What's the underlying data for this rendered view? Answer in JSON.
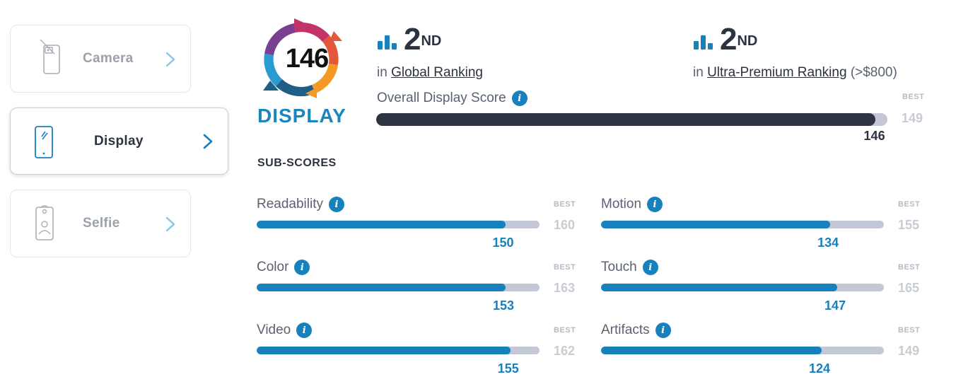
{
  "sidebar": {
    "items": [
      {
        "label": "Camera",
        "active": false
      },
      {
        "label": "Display",
        "active": true
      },
      {
        "label": "Selfie",
        "active": false
      }
    ]
  },
  "badge": {
    "score": "146",
    "label": "DISPLAY"
  },
  "rankings": [
    {
      "position": "2",
      "suffix": "ND",
      "prefix": "in",
      "link": "Global Ranking",
      "note": ""
    },
    {
      "position": "2",
      "suffix": "ND",
      "prefix": "in",
      "link": "Ultra-Premium Ranking",
      "note": "(>$800)"
    }
  ],
  "overall": {
    "title": "Overall Display Score",
    "best_label": "BEST",
    "best": 149,
    "score": 146
  },
  "subscores_heading": "SUB-SCORES",
  "subscores": [
    {
      "name": "Readability",
      "score": 150,
      "best": 160,
      "best_label": "BEST"
    },
    {
      "name": "Motion",
      "score": 134,
      "best": 155,
      "best_label": "BEST"
    },
    {
      "name": "Color",
      "score": 153,
      "best": 163,
      "best_label": "BEST"
    },
    {
      "name": "Touch",
      "score": 147,
      "best": 165,
      "best_label": "BEST"
    },
    {
      "name": "Video",
      "score": 155,
      "best": 162,
      "best_label": "BEST"
    },
    {
      "name": "Artifacts",
      "score": 124,
      "best": 149,
      "best_label": "BEST"
    }
  ],
  "colors": {
    "accent": "#1681bd",
    "dark_bar": "#2e3443",
    "track": "#c4c7d6"
  },
  "icons": {
    "info": "info-icon",
    "rank": "bar-chart-icon",
    "chevron": "chevron-right-icon"
  }
}
